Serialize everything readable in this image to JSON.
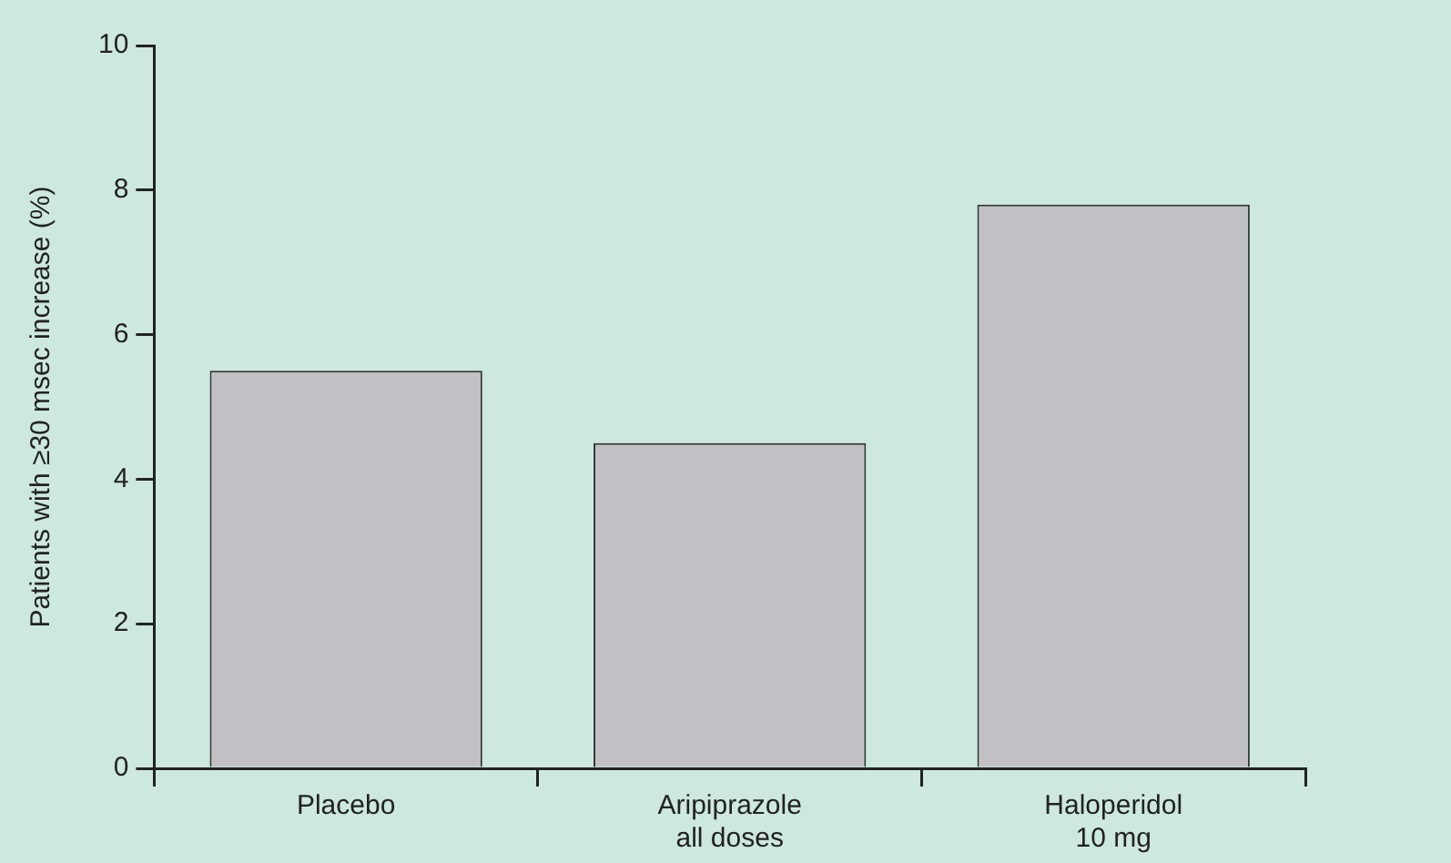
{
  "chart_data": {
    "type": "bar",
    "ylabel": "Patients with ≥30 msec increase (%)",
    "categories": [
      "Placebo",
      "Aripiprazole\nall doses",
      "Haloperidol\n10 mg"
    ],
    "values": [
      5.5,
      4.5,
      7.8
    ],
    "color": "#c1c1c5",
    "ylim": [
      0,
      10
    ],
    "yticks": [
      0,
      2,
      4,
      6,
      8,
      10
    ],
    "grid": false,
    "legend": false
  }
}
